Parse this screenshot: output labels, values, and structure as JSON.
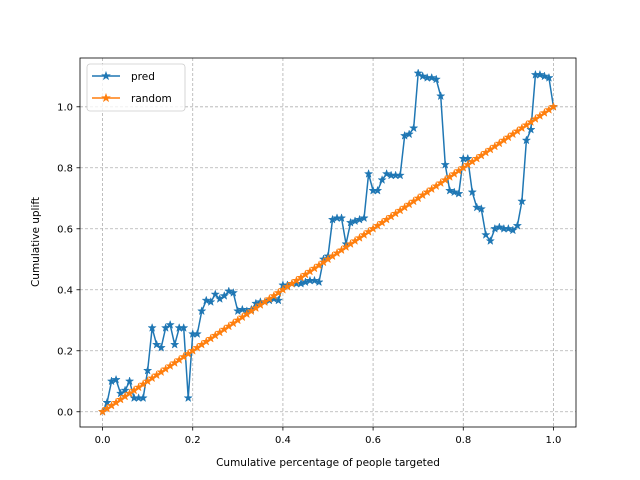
{
  "chart_data": {
    "type": "line",
    "title": "",
    "xlabel": "Cumulative percentage of people targeted",
    "ylabel": "Cumulative uplift",
    "xlim": [
      -0.05,
      1.05
    ],
    "ylim": [
      -0.05,
      1.16
    ],
    "xticks": [
      0.0,
      0.2,
      0.4,
      0.6,
      0.8,
      1.0
    ],
    "xtick_labels": [
      "0.0",
      "0.2",
      "0.4",
      "0.6",
      "0.8",
      "1.0"
    ],
    "yticks": [
      0.0,
      0.2,
      0.4,
      0.6,
      0.8,
      1.0
    ],
    "ytick_labels": [
      "0.0",
      "0.2",
      "0.4",
      "0.6",
      "0.8",
      "1.0"
    ],
    "grid": true,
    "legend_position": "upper-left",
    "series": [
      {
        "name": "pred",
        "color": "#1f77b4",
        "marker": "star",
        "x": [
          0.0,
          0.01,
          0.02,
          0.03,
          0.04,
          0.05,
          0.06,
          0.07,
          0.08,
          0.09,
          0.1,
          0.11,
          0.12,
          0.13,
          0.14,
          0.15,
          0.16,
          0.17,
          0.18,
          0.19,
          0.2,
          0.21,
          0.22,
          0.23,
          0.24,
          0.25,
          0.26,
          0.27,
          0.28,
          0.29,
          0.3,
          0.31,
          0.32,
          0.33,
          0.34,
          0.35,
          0.36,
          0.37,
          0.38,
          0.39,
          0.4,
          0.41,
          0.42,
          0.43,
          0.44,
          0.45,
          0.46,
          0.47,
          0.48,
          0.49,
          0.5,
          0.51,
          0.52,
          0.53,
          0.54,
          0.55,
          0.56,
          0.57,
          0.58,
          0.59,
          0.6,
          0.61,
          0.62,
          0.63,
          0.64,
          0.65,
          0.66,
          0.67,
          0.68,
          0.69,
          0.7,
          0.71,
          0.72,
          0.73,
          0.74,
          0.75,
          0.76,
          0.77,
          0.78,
          0.79,
          0.8,
          0.81,
          0.82,
          0.83,
          0.84,
          0.85,
          0.86,
          0.87,
          0.88,
          0.89,
          0.9,
          0.91,
          0.92,
          0.93,
          0.94,
          0.95,
          0.96,
          0.97,
          0.98,
          0.99,
          1.0
        ],
        "y": [
          0.0,
          0.03,
          0.1,
          0.105,
          0.06,
          0.07,
          0.1,
          0.045,
          0.045,
          0.045,
          0.135,
          0.275,
          0.22,
          0.21,
          0.275,
          0.285,
          0.22,
          0.275,
          0.275,
          0.045,
          0.255,
          0.255,
          0.33,
          0.365,
          0.36,
          0.385,
          0.37,
          0.38,
          0.395,
          0.39,
          0.33,
          0.335,
          0.33,
          0.335,
          0.355,
          0.36,
          0.36,
          0.365,
          0.37,
          0.365,
          0.415,
          0.415,
          0.42,
          0.42,
          0.42,
          0.425,
          0.43,
          0.43,
          0.425,
          0.5,
          0.51,
          0.63,
          0.635,
          0.635,
          0.55,
          0.62,
          0.625,
          0.63,
          0.635,
          0.78,
          0.725,
          0.725,
          0.76,
          0.78,
          0.775,
          0.775,
          0.775,
          0.905,
          0.91,
          0.93,
          1.11,
          1.1,
          1.095,
          1.095,
          1.09,
          1.035,
          0.81,
          0.725,
          0.72,
          0.715,
          0.83,
          0.83,
          0.72,
          0.67,
          0.665,
          0.58,
          0.56,
          0.6,
          0.605,
          0.6,
          0.6,
          0.595,
          0.61,
          0.69,
          0.89,
          0.925,
          1.105,
          1.105,
          1.1,
          1.095,
          1.0
        ]
      },
      {
        "name": "random",
        "color": "#ff7f0e",
        "marker": "star",
        "x_start": 0.0,
        "x_end": 1.0,
        "y_start": 0.0,
        "y_end": 1.0,
        "points": 101
      }
    ]
  }
}
